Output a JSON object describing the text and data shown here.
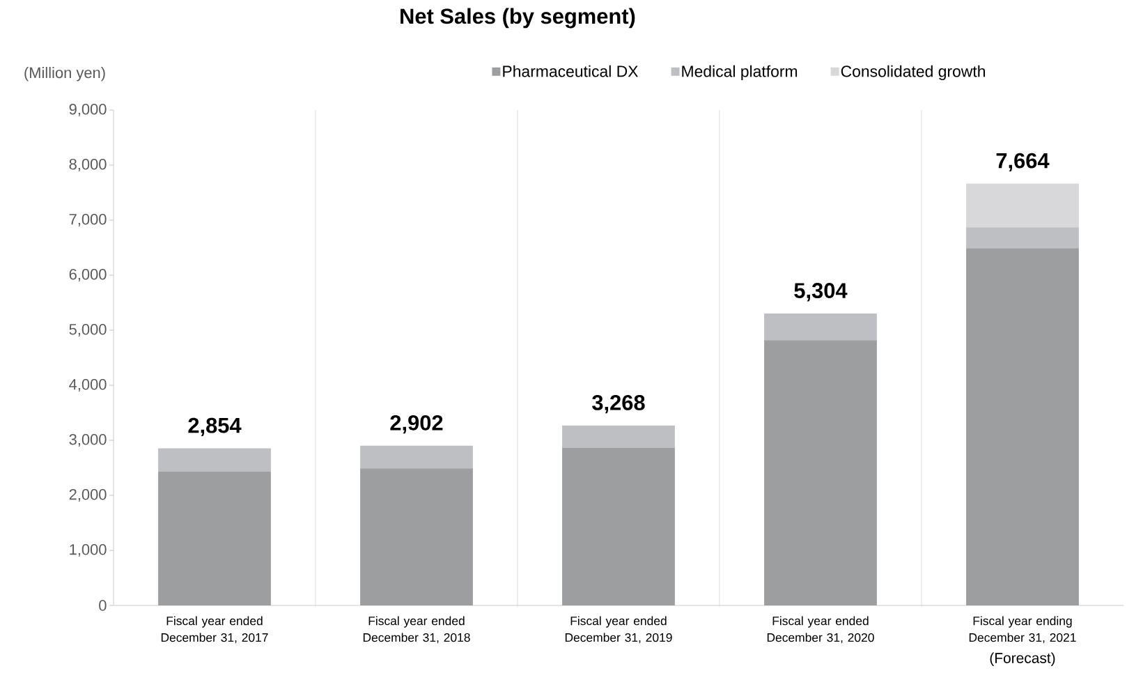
{
  "chart_data": {
    "type": "bar",
    "stacked": true,
    "title": "Net Sales (by segment)",
    "ylabel": "(Million yen)",
    "categories": [
      "Fiscal year ended December 31, 2017",
      "Fiscal year ended December 31, 2018",
      "Fiscal year ended December 31, 2019",
      "Fiscal year ended December 31, 2020",
      "Fiscal year ending December 31, 2021"
    ],
    "series": [
      {
        "name": "Pharmaceutical DX",
        "color": "#9d9ea0",
        "values": [
          2430,
          2490,
          2860,
          4820,
          6490
        ]
      },
      {
        "name": "Medical platform",
        "color": "#bebfc2",
        "values": [
          424,
          412,
          408,
          484,
          380
        ]
      },
      {
        "name": "Consolidated growth",
        "color": "#d8d8da",
        "values": [
          null,
          null,
          null,
          null,
          794
        ]
      }
    ],
    "totals": [
      "2,854",
      "2,902",
      "3,268",
      "5,304",
      "7,664"
    ],
    "ylim": [
      0,
      9000
    ],
    "yticks": [
      {
        "value": 0,
        "label": "0"
      },
      {
        "value": 1000,
        "label": "1,000"
      },
      {
        "value": 2000,
        "label": "2,000"
      },
      {
        "value": 3000,
        "label": "3,000"
      },
      {
        "value": 4000,
        "label": "4,000"
      },
      {
        "value": 5000,
        "label": "5,000"
      },
      {
        "value": 6000,
        "label": "6,000"
      },
      {
        "value": 7000,
        "label": "7,000"
      },
      {
        "value": 8000,
        "label": "8,000"
      },
      {
        "value": 9000,
        "label": "9,000"
      }
    ],
    "grid": "x",
    "legend": "top",
    "annotations": [
      "(Forecast)"
    ]
  }
}
